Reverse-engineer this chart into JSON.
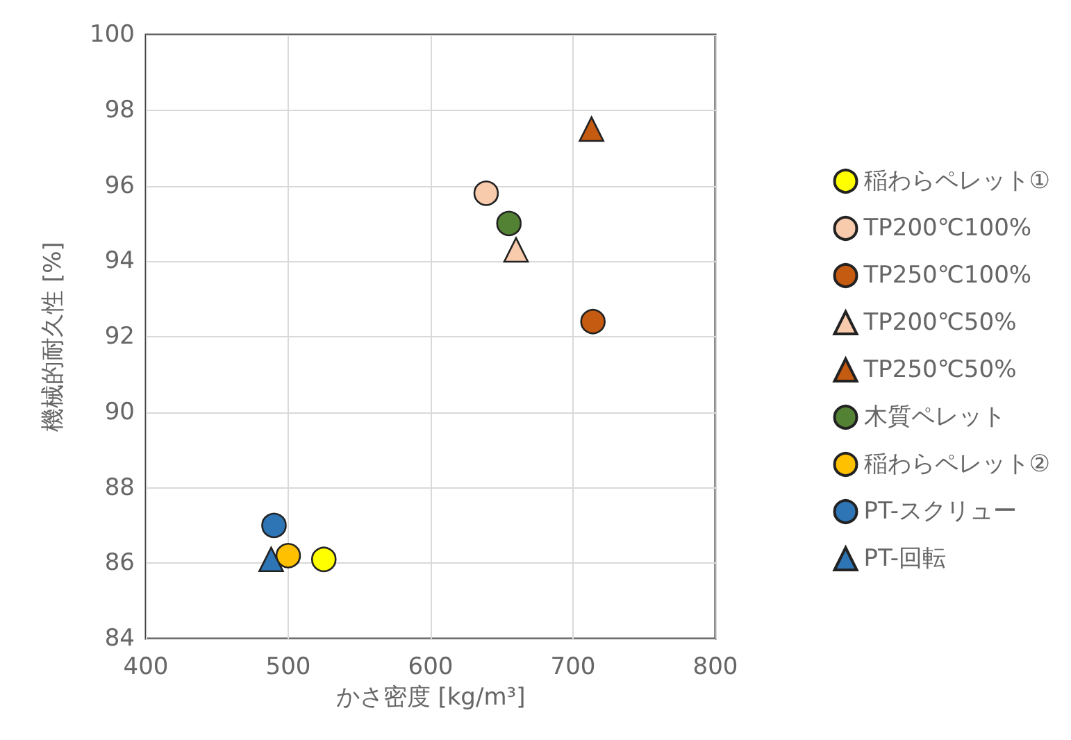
{
  "chart_data": {
    "type": "scatter",
    "xlabel": "かさ密度 [kg/m³]",
    "ylabel": "機械的耐久性 [%]",
    "xlim": [
      400,
      800
    ],
    "xticks": [
      400,
      500,
      600,
      700,
      800
    ],
    "ylim": [
      84,
      100
    ],
    "yticks": [
      84,
      86,
      88,
      90,
      92,
      94,
      96,
      98,
      100
    ],
    "grid": true,
    "legend": "right",
    "series": [
      {
        "name": "稲わらペレット①",
        "color": "#ffff00",
        "marker": "circle",
        "x": [
          525
        ],
        "values": [
          86.1
        ]
      },
      {
        "name": "TP200℃100%",
        "color": "#f8cbad",
        "marker": "circle",
        "x": [
          639
        ],
        "values": [
          95.8
        ]
      },
      {
        "name": "TP250℃100%",
        "color": "#c55a11",
        "marker": "circle",
        "x": [
          714
        ],
        "values": [
          92.4
        ]
      },
      {
        "name": "TP200℃50%",
        "color": "#f8cbad",
        "marker": "triangle",
        "x": [
          660
        ],
        "values": [
          94.3
        ]
      },
      {
        "name": "TP250℃50%",
        "color": "#c55a11",
        "marker": "triangle",
        "x": [
          713
        ],
        "values": [
          97.5
        ]
      },
      {
        "name": "木質ペレット",
        "color": "#548235",
        "marker": "circle",
        "x": [
          655
        ],
        "values": [
          95.0
        ]
      },
      {
        "name": "稲わらペレット②",
        "color": "#ffc000",
        "marker": "circle",
        "x": [
          500
        ],
        "values": [
          86.2
        ]
      },
      {
        "name": "PT-スクリュー",
        "color": "#2e75b6",
        "marker": "circle",
        "x": [
          490
        ],
        "values": [
          87.0
        ]
      },
      {
        "name": "PT-回転",
        "color": "#2e75b6",
        "marker": "triangle",
        "x": [
          488
        ],
        "values": [
          86.1
        ]
      }
    ]
  }
}
